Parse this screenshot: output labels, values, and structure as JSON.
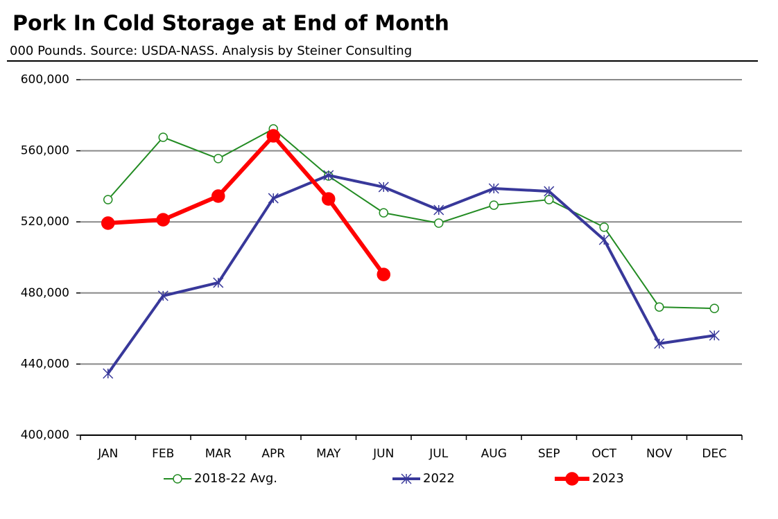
{
  "chart_data": {
    "type": "line",
    "title": "Pork In Cold Storage at End of Month",
    "subtitle": "000 Pounds.  Source: USDA-NASS.  Analysis by Steiner Consulting",
    "categories": [
      "JAN",
      "FEB",
      "MAR",
      "APR",
      "MAY",
      "JUN",
      "JUL",
      "AUG",
      "SEP",
      "OCT",
      "NOV",
      "DEC"
    ],
    "series": [
      {
        "name": "2018-22 Avg.",
        "color": "#228b22",
        "marker": "open-circle",
        "values": [
          532500,
          567600,
          555600,
          572300,
          545800,
          525100,
          519300,
          529400,
          532500,
          517000,
          472100,
          471300
        ]
      },
      {
        "name": "2022",
        "color": "#38389a",
        "marker": "star",
        "values": [
          434700,
          478400,
          485800,
          533300,
          546200,
          539600,
          526700,
          538800,
          537200,
          509900,
          451500,
          456100
        ]
      },
      {
        "name": "2023",
        "color": "#ff0000",
        "marker": "filled-circle",
        "values": [
          519300,
          521200,
          534500,
          568400,
          532900,
          490400,
          null,
          null,
          null,
          null,
          null,
          null
        ]
      }
    ],
    "ylim": [
      400000,
      600000
    ],
    "yticks": [
      {
        "value": 400000,
        "label": "400,000"
      },
      {
        "value": 440000,
        "label": "440,000"
      },
      {
        "value": 480000,
        "label": "480,000"
      },
      {
        "value": 520000,
        "label": "520,000"
      },
      {
        "value": 560000,
        "label": "560,000"
      },
      {
        "value": 600000,
        "label": "600,000"
      }
    ],
    "grid": true,
    "legend": "bottom"
  }
}
